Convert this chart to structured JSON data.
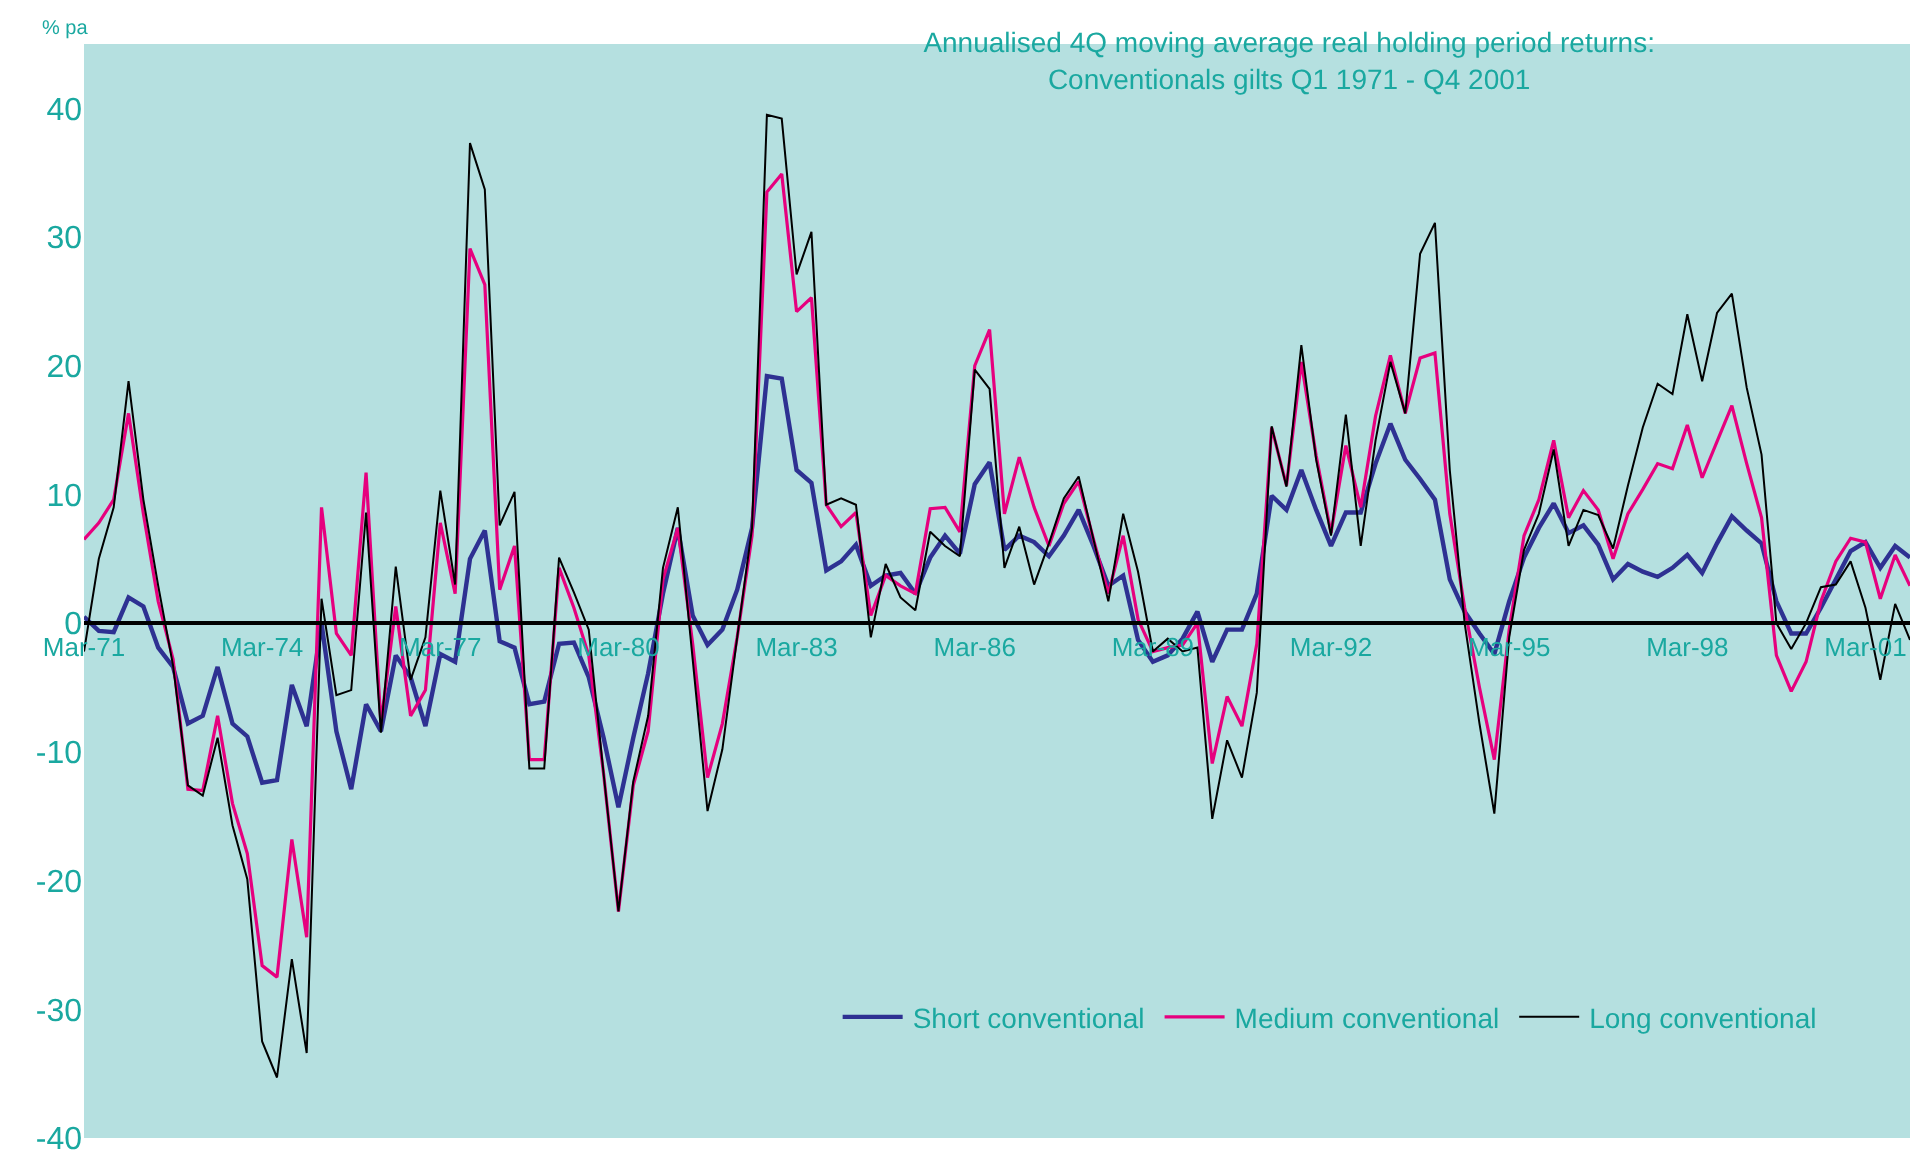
{
  "chart_data": {
    "type": "line",
    "title": "Annualised 4Q moving average real holding period returns:\nConventionals gilts Q1 1971 - Q4 2001",
    "ylabel": "% pa",
    "categories": [
      "Mar-71",
      null,
      null,
      null,
      null,
      null,
      null,
      null,
      null,
      null,
      null,
      null,
      "Mar-74",
      null,
      null,
      null,
      null,
      null,
      null,
      null,
      null,
      null,
      null,
      null,
      "Mar-77",
      null,
      null,
      null,
      null,
      null,
      null,
      null,
      null,
      null,
      null,
      null,
      "Mar-80",
      null,
      null,
      null,
      null,
      null,
      null,
      null,
      null,
      null,
      null,
      null,
      "Mar-83",
      null,
      null,
      null,
      null,
      null,
      null,
      null,
      null,
      null,
      null,
      null,
      "Mar-86",
      null,
      null,
      null,
      null,
      null,
      null,
      null,
      null,
      null,
      null,
      null,
      "Mar-89",
      null,
      null,
      null,
      null,
      null,
      null,
      null,
      null,
      null,
      null,
      null,
      "Mar-92",
      null,
      null,
      null,
      null,
      null,
      null,
      null,
      null,
      null,
      null,
      null,
      "Mar-95",
      null,
      null,
      null,
      null,
      null,
      null,
      null,
      null,
      null,
      null,
      null,
      "Mar-98",
      null,
      null,
      null,
      null,
      null,
      null,
      null,
      null,
      null,
      null,
      null,
      "Mar-01",
      null,
      null,
      null
    ],
    "series": [
      {
        "name": "Short conventional",
        "color": "#2e3192",
        "values": [
          0.5,
          -0.6,
          -0.7,
          2,
          1.3,
          -1.9,
          -3.4,
          -7.8,
          -7.2,
          -3.4,
          -7.8,
          -8.8,
          -12.4,
          -12.2,
          -4.8,
          -8,
          0,
          -8.4,
          -12.9,
          -6.3,
          -8.4,
          -2.5,
          -4.2,
          -8,
          -2.4,
          -3,
          5,
          7.2,
          -1.4,
          -1.9,
          -6.3,
          -6.1,
          -1.6,
          -1.5,
          -4.2,
          -8.9,
          -14.3,
          -8.9,
          -3.9,
          2.3,
          7.4,
          0.6,
          -1.7,
          -0.5,
          2.6,
          7.4,
          19.2,
          19,
          11.9,
          10.9,
          4.1,
          4.8,
          6.1,
          2.9,
          3.7,
          3.9,
          2.3,
          5.1,
          6.8,
          5.4,
          10.8,
          12.5,
          5.7,
          6.8,
          6.3,
          5.2,
          6.8,
          8.8,
          6,
          2.9,
          3.7,
          -1.3,
          -3,
          -2.5,
          -1.2,
          0.9,
          -3,
          -0.5,
          -0.5,
          2.3,
          9.9,
          8.8,
          11.9,
          8.8,
          6,
          8.6,
          8.6,
          12.4,
          15.5,
          12.7,
          11.2,
          9.6,
          3.4,
          0.9,
          -0.8,
          -2.4,
          1.7,
          5.1,
          7.4,
          9.3,
          7,
          7.6,
          6.1,
          3.4,
          4.6,
          4,
          3.6,
          4.3,
          5.3,
          3.9,
          6.2,
          8.3,
          7.2,
          6.2,
          1.7,
          -0.8,
          -0.8,
          1.2,
          3.4,
          5.6,
          6.3,
          4.3,
          6,
          5.1
        ]
      },
      {
        "name": "Medium conventional",
        "color": "#e6007e",
        "values": [
          6.5,
          7.8,
          9.6,
          16.3,
          8.5,
          1.7,
          -2.8,
          -12.9,
          -13,
          -7.2,
          -14,
          -17.9,
          -26.6,
          -27.5,
          -16.8,
          -24.4,
          9,
          -0.8,
          -2.5,
          11.7,
          -7.8,
          1.3,
          -7.2,
          -5.2,
          7.8,
          2.3,
          29.1,
          26.3,
          2.6,
          6,
          -10.6,
          -10.6,
          4.3,
          1.2,
          -2.5,
          -11.7,
          -22.4,
          -12.6,
          -8.4,
          3.4,
          7.4,
          -1.6,
          -12,
          -7.8,
          -1.1,
          6.8,
          33.5,
          34.9,
          24.2,
          25.3,
          9.2,
          7.5,
          8.6,
          0.6,
          3.7,
          2.9,
          2.3,
          8.9,
          9,
          7.1,
          20,
          22.8,
          8.5,
          12.9,
          9,
          6,
          9.3,
          11,
          6.5,
          2.3,
          6.8,
          0.3,
          -2.2,
          -1.9,
          -1.7,
          0,
          -10.9,
          -5.7,
          -8,
          -1.6,
          15.2,
          10.7,
          20.3,
          13,
          7,
          13.8,
          9,
          16.1,
          20.8,
          16.3,
          20.6,
          21,
          8.5,
          1.2,
          -5,
          -10.6,
          -0.5,
          6.8,
          9.6,
          14.2,
          8.2,
          10.3,
          8.8,
          5,
          8.5,
          10.4,
          12.4,
          12,
          15.4,
          11.3,
          14.1,
          16.9,
          12.4,
          8.2,
          -2.5,
          -5.3,
          -3,
          1.7,
          4.8,
          6.6,
          6.3,
          1.9,
          5.3,
          2.9
        ]
      },
      {
        "name": "Long conventional",
        "color": "#000000",
        "values": [
          -2.2,
          5,
          9,
          18.8,
          9.6,
          2.9,
          -3.3,
          -12.6,
          -13.4,
          -8.9,
          -15.7,
          -19.9,
          -32.5,
          -35.3,
          -26.1,
          -33.4,
          1.9,
          -5.6,
          -5.2,
          8.6,
          -8.5,
          4.4,
          -4.4,
          -1.1,
          10.3,
          3,
          37.3,
          33.7,
          7.6,
          10.2,
          -11.3,
          -11.3,
          5.1,
          2.4,
          -0.5,
          -11.7,
          -22.4,
          -12.3,
          -7.2,
          4.3,
          9,
          -2.8,
          -14.6,
          -9.8,
          -1.1,
          7.4,
          39.5,
          39.2,
          27.1,
          30.4,
          9.2,
          9.7,
          9.2,
          -1.1,
          4.6,
          2,
          1,
          7.1,
          6,
          5.2,
          19.7,
          18.2,
          4.3,
          7.5,
          3,
          6.2,
          9.7,
          11.4,
          6.5,
          1.7,
          8.5,
          4,
          -2.2,
          -1.2,
          -2.2,
          -1.9,
          -15.2,
          -9.1,
          -12,
          -5.4,
          15.3,
          10.6,
          21.6,
          12.7,
          6.8,
          16.2,
          6,
          14.2,
          20.3,
          16.3,
          28.7,
          31.1,
          11.9,
          0,
          -7.8,
          -14.8,
          -1.1,
          5.7,
          8.5,
          13.5,
          6,
          8.8,
          8.4,
          5.8,
          10.7,
          15.2,
          18.6,
          17.8,
          24,
          18.8,
          24.1,
          25.6,
          18.3,
          13.1,
          0,
          -2,
          0,
          2.8,
          3,
          4.8,
          1.2,
          -4.4,
          1.5,
          -1.3
        ]
      }
    ],
    "ylim": [
      -40,
      45
    ],
    "yticks": [
      -40,
      -30,
      -20,
      -10,
      0,
      10,
      20,
      30,
      40
    ],
    "grid": false,
    "legend": "bottom right",
    "marker": "none",
    "line_style": "solid"
  }
}
